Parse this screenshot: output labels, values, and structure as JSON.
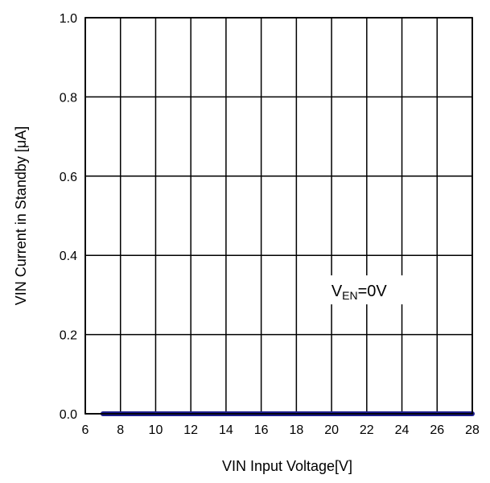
{
  "chart_data": {
    "type": "line",
    "xlabel": "VIN Input Voltage[V]",
    "ylabel": "VIN Current in Standby [μA]",
    "xlim": [
      6,
      28
    ],
    "ylim": [
      0.0,
      1.0
    ],
    "x_ticks": [
      6,
      8,
      10,
      12,
      14,
      16,
      18,
      20,
      22,
      24,
      26,
      28
    ],
    "x_tick_labels": [
      "6",
      "8",
      "10",
      "12",
      "14",
      "16",
      "18",
      "20",
      "22",
      "24",
      "26",
      "28"
    ],
    "y_ticks": [
      0.0,
      0.2,
      0.4,
      0.6,
      0.8,
      1.0
    ],
    "y_tick_labels": [
      "0.0",
      "0.2",
      "0.4",
      "0.6",
      "0.8",
      "1.0"
    ],
    "grid": true,
    "annotation": {
      "main": "V",
      "sub": "EN",
      "suffix": "=0V",
      "x": 22,
      "y": 0.26
    },
    "series": [
      {
        "color": "#1c1c8c",
        "x": [
          7,
          8,
          10,
          12,
          14,
          16,
          18,
          20,
          22,
          24,
          26,
          28
        ],
        "y": [
          0,
          0,
          0,
          0,
          0,
          0,
          0,
          0,
          0,
          0,
          0,
          0
        ]
      }
    ]
  }
}
